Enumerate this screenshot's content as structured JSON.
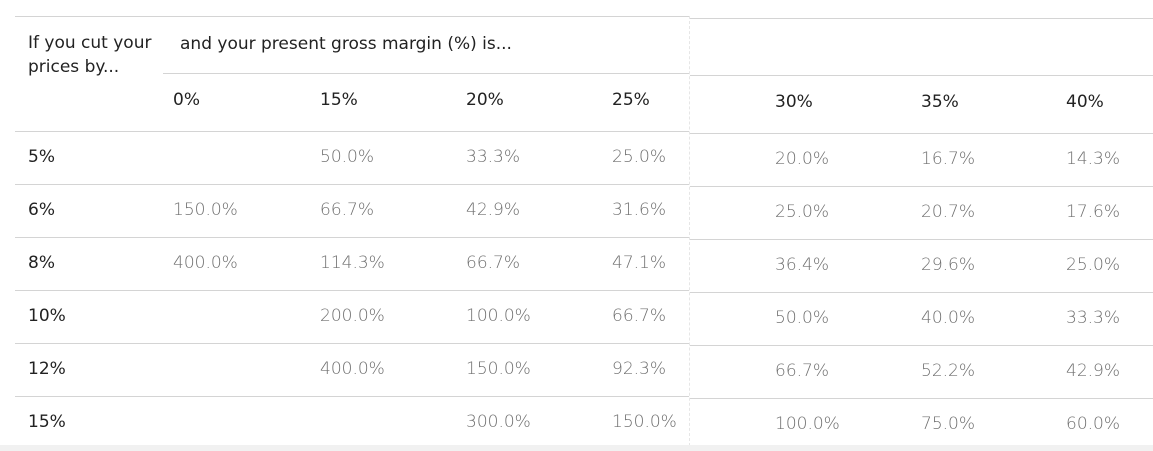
{
  "header": {
    "corner": "If you cut your prices by...",
    "group": "and your present gross margin (%) is..."
  },
  "columns": [
    "0%",
    "15%",
    "20%",
    "25%",
    "30%",
    "35%",
    "40%"
  ],
  "rows": [
    {
      "label": "5%",
      "cells": [
        null,
        "50.0%",
        "33.3%",
        "25.0%",
        "20.0%",
        "16.7%",
        "14.3%"
      ]
    },
    {
      "label": "6%",
      "cells": [
        "150.0%",
        "66.7%",
        "42.9%",
        "31.6%",
        "25.0%",
        "20.7%",
        "17.6%"
      ]
    },
    {
      "label": "8%",
      "cells": [
        "400.0%",
        "114.3%",
        "66.7%",
        "47.1%",
        "36.4%",
        "29.6%",
        "25.0%"
      ]
    },
    {
      "label": "10%",
      "cells": [
        null,
        "200.0%",
        "100.0%",
        "66.7%",
        "50.0%",
        "40.0%",
        "33.3%"
      ]
    },
    {
      "label": "12%",
      "cells": [
        null,
        "400.0%",
        "150.0%",
        "92.3%",
        "66.7%",
        "52.2%",
        "42.9%"
      ]
    },
    {
      "label": "15%",
      "cells": [
        null,
        null,
        "300.0%",
        "150.0%",
        "100.0%",
        "75.0%",
        "60.0%"
      ]
    }
  ]
}
